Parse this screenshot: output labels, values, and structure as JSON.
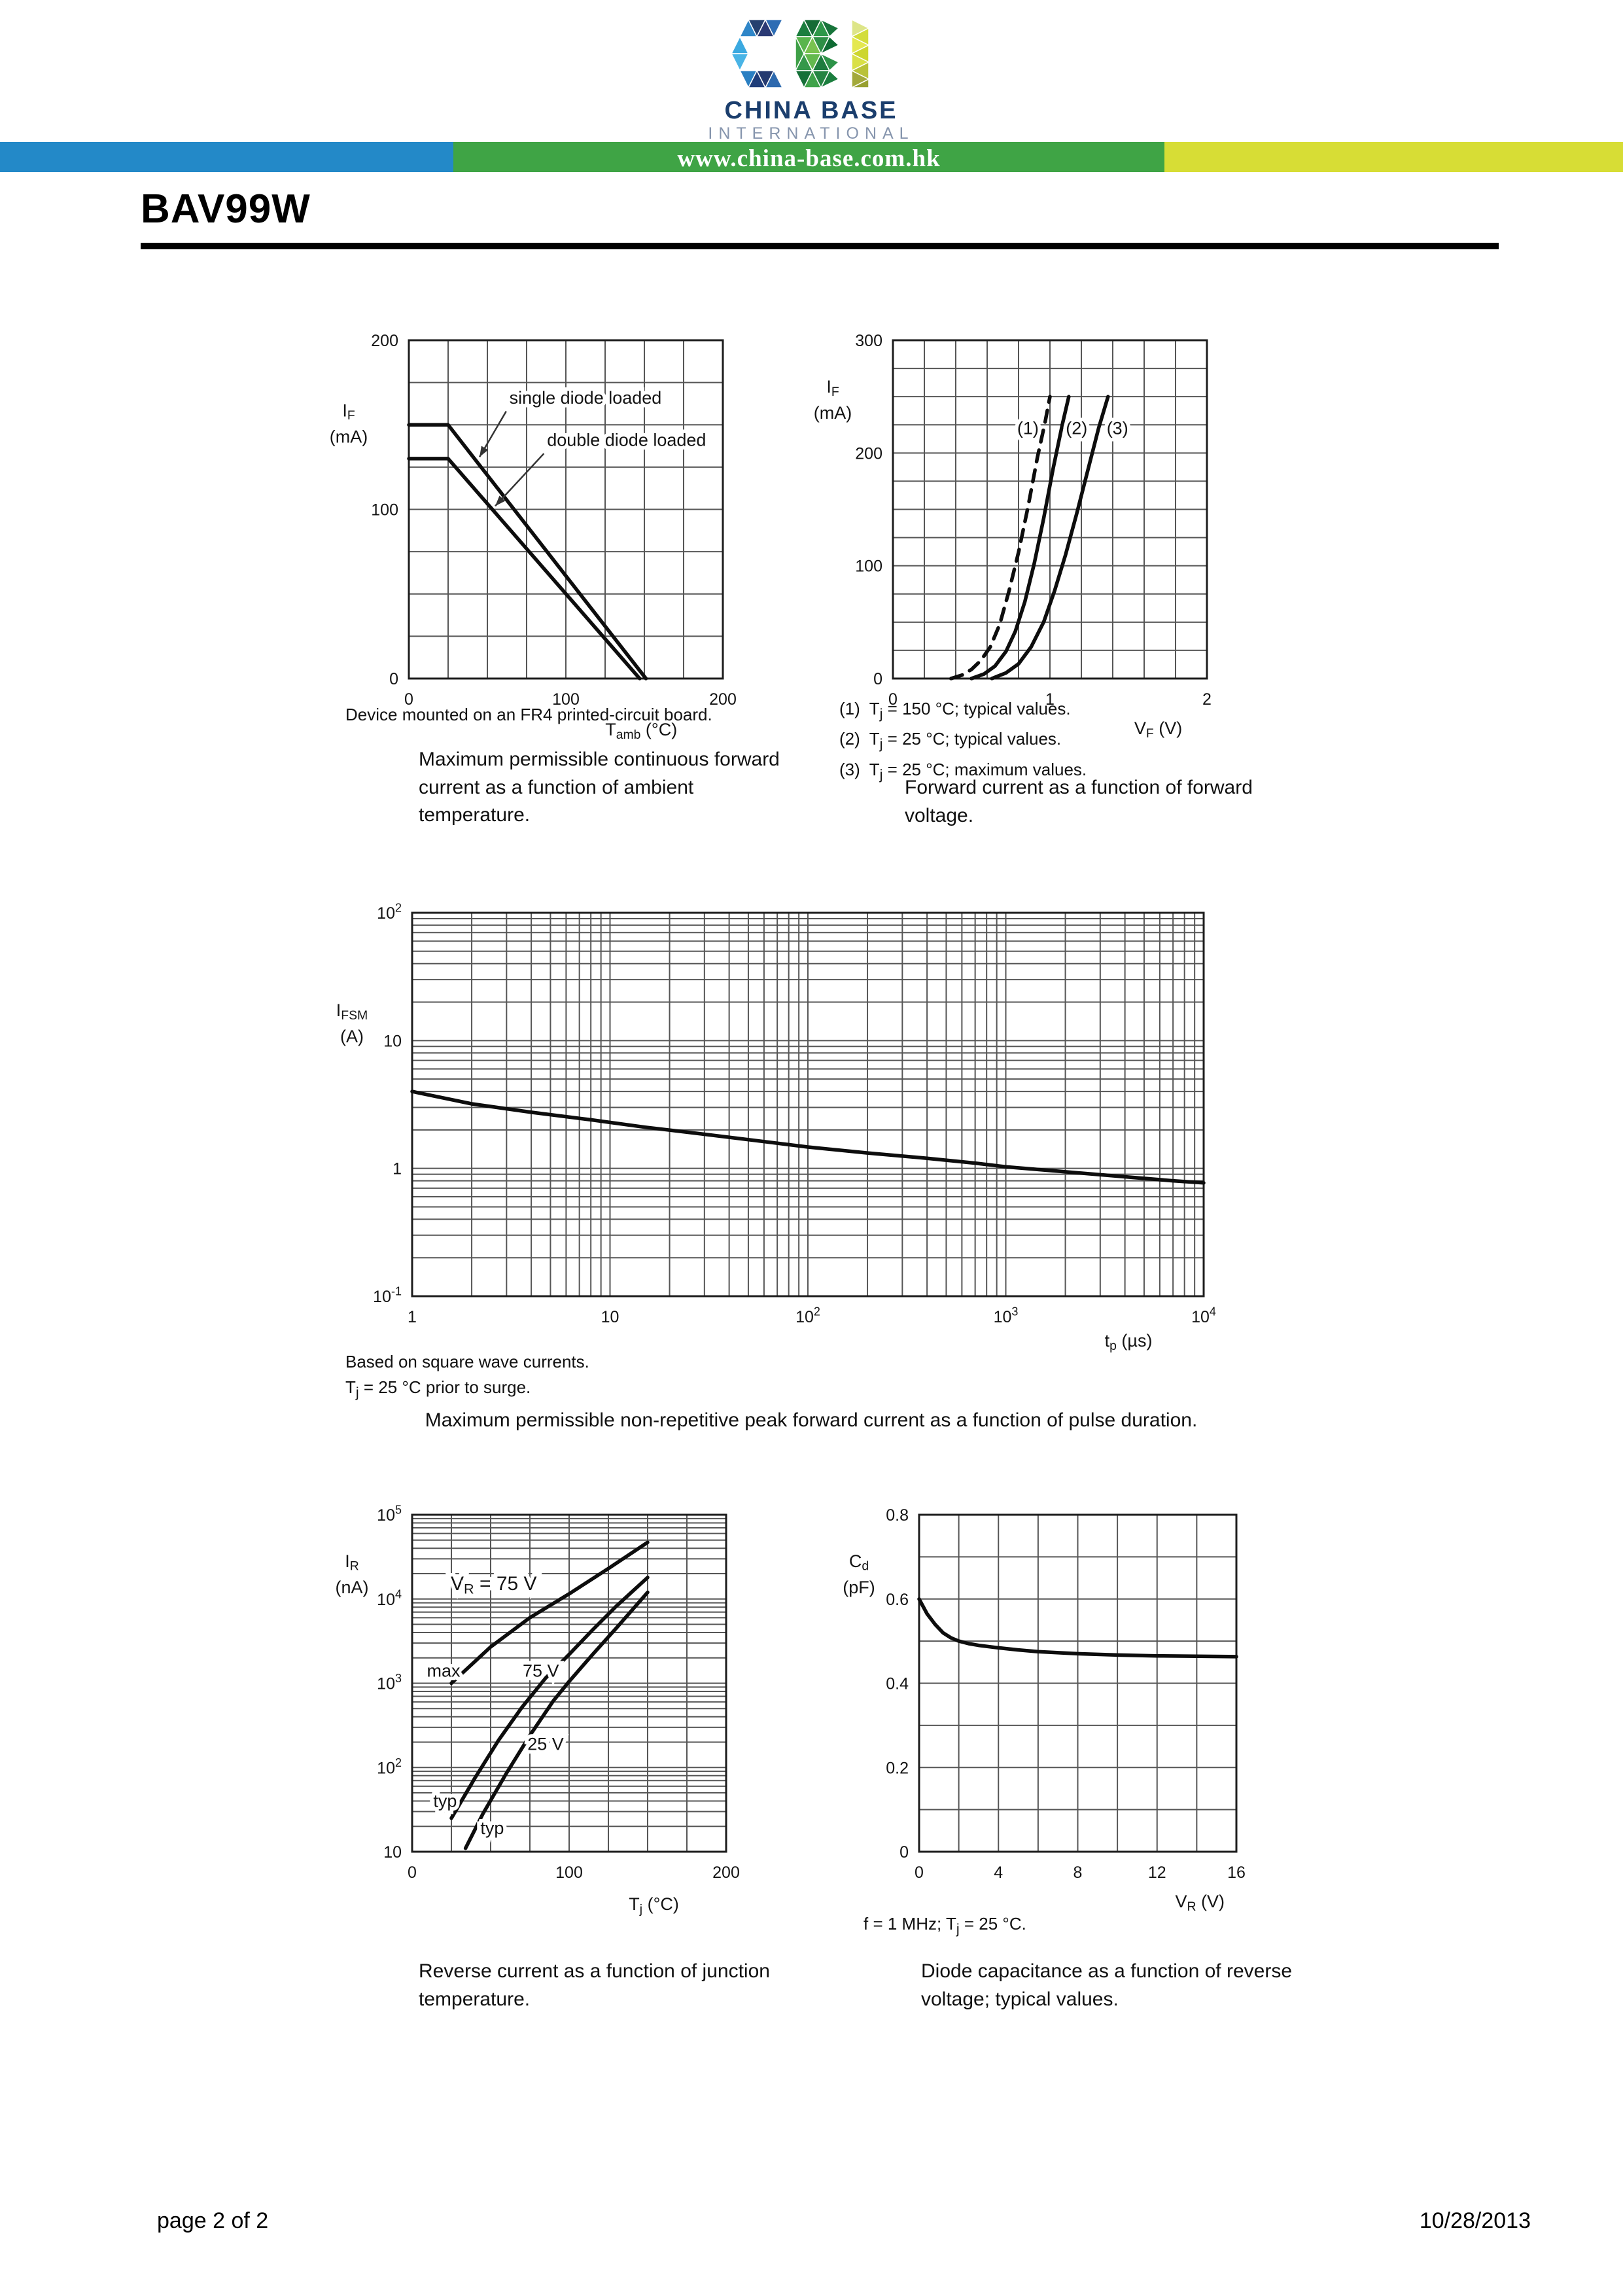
{
  "header": {
    "logo_letters": "CBI",
    "company_name": "CHINA BASE",
    "company_subtitle": "INTERNATIONAL",
    "website": "www.china-base.com.hk",
    "part_number": "BAV99W",
    "brand_colors": {
      "navy": "#1b3e6d",
      "gray_blue": "#8695ad",
      "banner_blue": "#2389c8",
      "banner_green": "#3fa445",
      "banner_yellow": "#d7dd35"
    }
  },
  "footer": {
    "page_label": "page 2 of 2",
    "date": "10/28/2013"
  },
  "captions": {
    "chart1_note": "Device mounted on an FR4 printed-circuit board.",
    "chart1_caption": "Maximum permissible continuous forward current as a function of ambient temperature.",
    "chart2_notes": [
      "(1)  T_{j} = 150 °C; typical values.",
      "(2)  T_{j} = 25 °C; typical values.",
      "(3)  T_{j} = 25 °C; maximum values."
    ],
    "chart2_caption": "Forward current as a function of forward voltage.",
    "chart3_notes": [
      "Based on square wave currents.",
      "T_{j} = 25 °C prior to surge."
    ],
    "chart3_caption": "Maximum permissible non-repetitive peak forward current as a function of pulse duration.",
    "chart4_caption": "Reverse current as a function of junction temperature.",
    "chart5_note": "f = 1 MHz; T_{j} = 25 °C.",
    "chart5_caption": "Diode capacitance as a function of reverse voltage; typical values."
  },
  "chart_data": [
    {
      "id": "c1",
      "type": "line",
      "title": "Maximum permissible continuous forward current as a function of ambient temperature",
      "xlabel": "T_{amb} (°C)",
      "ylabel_lines": [
        "I_{F}",
        "(mA)"
      ],
      "x": {
        "scale": "linear",
        "min": 0,
        "max": 200,
        "grid_step": 25,
        "ticks": [
          {
            "v": 0,
            "l": "0"
          },
          {
            "v": 100,
            "l": "100"
          },
          {
            "v": 200,
            "l": "200"
          }
        ]
      },
      "y": {
        "scale": "linear",
        "min": 0,
        "max": 200,
        "grid_step": 25,
        "ticks": [
          {
            "v": 0,
            "l": "0"
          },
          {
            "v": 100,
            "l": "100"
          },
          {
            "v": 200,
            "l": "200"
          }
        ]
      },
      "series": [
        {
          "name": "single diode loaded",
          "points": [
            [
              0,
              150
            ],
            [
              25,
              150
            ],
            [
              151,
              0
            ]
          ]
        },
        {
          "name": "double diode loaded",
          "points": [
            [
              0,
              130
            ],
            [
              25,
              130
            ],
            [
              147,
              0
            ]
          ]
        }
      ],
      "annotations": [
        {
          "text": "single diode loaded",
          "x": 64,
          "y": 166,
          "anchor": "start"
        },
        {
          "text": "double diode loaded",
          "x": 88,
          "y": 141,
          "anchor": "start"
        }
      ],
      "arrows": [
        {
          "from": [
            62,
            158
          ],
          "to": [
            45,
            131
          ]
        },
        {
          "from": [
            86,
            133
          ],
          "to": [
            55,
            102
          ]
        }
      ]
    },
    {
      "id": "c2",
      "type": "line",
      "title": "Forward current as a function of forward voltage",
      "xlabel": "V_{F} (V)",
      "ylabel_lines": [
        "I_{F}",
        "(mA)"
      ],
      "x": {
        "scale": "linear",
        "min": 0,
        "max": 2,
        "grid_step": 0.2,
        "ticks": [
          {
            "v": 0,
            "l": "0"
          },
          {
            "v": 1,
            "l": "1"
          },
          {
            "v": 2,
            "l": "2"
          }
        ]
      },
      "y": {
        "scale": "linear",
        "min": 0,
        "max": 300,
        "grid_step": 25,
        "ticks": [
          {
            "v": 0,
            "l": "0"
          },
          {
            "v": 100,
            "l": "100"
          },
          {
            "v": 200,
            "l": "200"
          },
          {
            "v": 300,
            "l": "300"
          }
        ]
      },
      "series": [
        {
          "name": "(1) T_{j} = 150 °C; typical values",
          "dashed": true,
          "points": [
            [
              0.37,
              0
            ],
            [
              0.44,
              3
            ],
            [
              0.5,
              8
            ],
            [
              0.56,
              16
            ],
            [
              0.62,
              28
            ],
            [
              0.68,
              48
            ],
            [
              0.74,
              78
            ],
            [
              0.8,
              112
            ],
            [
              0.86,
              152
            ],
            [
              0.92,
              196
            ],
            [
              0.97,
              228
            ],
            [
              1.0,
              250
            ]
          ]
        },
        {
          "name": "(2) T_{j} = 25 °C; typical values",
          "points": [
            [
              0.5,
              0
            ],
            [
              0.58,
              4
            ],
            [
              0.65,
              11
            ],
            [
              0.72,
              24
            ],
            [
              0.78,
              42
            ],
            [
              0.84,
              68
            ],
            [
              0.9,
              102
            ],
            [
              0.96,
              142
            ],
            [
              1.02,
              186
            ],
            [
              1.08,
              226
            ],
            [
              1.12,
              250
            ]
          ]
        },
        {
          "name": "(3) T_{j} = 25 °C; maximum values",
          "points": [
            [
              0.63,
              0
            ],
            [
              0.72,
              5
            ],
            [
              0.8,
              13
            ],
            [
              0.88,
              28
            ],
            [
              0.96,
              50
            ],
            [
              1.03,
              78
            ],
            [
              1.1,
              110
            ],
            [
              1.17,
              146
            ],
            [
              1.24,
              184
            ],
            [
              1.31,
              222
            ],
            [
              1.37,
              250
            ]
          ]
        }
      ],
      "annotations": [
        {
          "text": "(1)",
          "x": 0.86,
          "y": 222,
          "anchor": "middle"
        },
        {
          "text": "(2)",
          "x": 1.17,
          "y": 222,
          "anchor": "middle"
        },
        {
          "text": "(3)",
          "x": 1.43,
          "y": 222,
          "anchor": "middle"
        }
      ],
      "arrows": []
    },
    {
      "id": "c3",
      "type": "line",
      "title": "Maximum permissible non-repetitive peak forward current as a function of pulse duration",
      "xlabel": "t_{p} (µs)",
      "ylabel_lines": [
        "I_{FSM}",
        "(A)"
      ],
      "x": {
        "scale": "log",
        "min": 1,
        "max": 10000,
        "ticks": [
          {
            "v": 1,
            "l": "1"
          },
          {
            "v": 10,
            "l": "10"
          },
          {
            "v": 100,
            "l": "10^{2}"
          },
          {
            "v": 1000,
            "l": "10^{3}"
          },
          {
            "v": 10000,
            "l": "10^{4}"
          }
        ]
      },
      "y": {
        "scale": "log",
        "min": 0.1,
        "max": 100,
        "ticks": [
          {
            "v": 0.1,
            "l": "10^{-1}"
          },
          {
            "v": 1,
            "l": "1"
          },
          {
            "v": 10,
            "l": "10"
          },
          {
            "v": 100,
            "l": "10^{2}"
          }
        ]
      },
      "series": [
        {
          "name": "IFSM",
          "points": [
            [
              1,
              4.0
            ],
            [
              2,
              3.2
            ],
            [
              4,
              2.75
            ],
            [
              8,
              2.4
            ],
            [
              15,
              2.1
            ],
            [
              30,
              1.85
            ],
            [
              60,
              1.62
            ],
            [
              100,
              1.47
            ],
            [
              200,
              1.32
            ],
            [
              400,
              1.2
            ],
            [
              700,
              1.1
            ],
            [
              1000,
              1.03
            ],
            [
              2000,
              0.94
            ],
            [
              4000,
              0.86
            ],
            [
              7000,
              0.8
            ],
            [
              10000,
              0.77
            ]
          ]
        }
      ],
      "annotations": [],
      "arrows": []
    },
    {
      "id": "c4",
      "type": "line",
      "title": "Reverse current as a function of junction temperature",
      "xlabel": "T_{j} (°C)",
      "ylabel_lines": [
        "I_{R}",
        "(nA)"
      ],
      "x": {
        "scale": "linear",
        "min": 0,
        "max": 200,
        "grid_step": 25,
        "ticks": [
          {
            "v": 0,
            "l": "0"
          },
          {
            "v": 100,
            "l": "100"
          },
          {
            "v": 200,
            "l": "200"
          }
        ]
      },
      "y": {
        "scale": "log",
        "min": 10,
        "max": 100000,
        "ticks": [
          {
            "v": 10,
            "l": "10"
          },
          {
            "v": 100,
            "l": "10^{2}"
          },
          {
            "v": 1000,
            "l": "10^{3}"
          },
          {
            "v": 10000,
            "l": "10^{4}"
          },
          {
            "v": 100000,
            "l": "10^{5}"
          }
        ]
      },
      "series": [
        {
          "name": "VR = 75 V max",
          "points": [
            [
              25,
              1000
            ],
            [
              50,
              2700
            ],
            [
              75,
              6000
            ],
            [
              100,
              11500
            ],
            [
              125,
              23000
            ],
            [
              150,
              47000
            ]
          ]
        },
        {
          "name": "VR = 75 V typ",
          "points": [
            [
              25,
              25
            ],
            [
              40,
              75
            ],
            [
              55,
              210
            ],
            [
              70,
              520
            ],
            [
              85,
              1150
            ],
            [
              100,
              2200
            ],
            [
              115,
              4300
            ],
            [
              130,
              8200
            ],
            [
              150,
              18000
            ]
          ]
        },
        {
          "name": "VR = 25 V typ",
          "points": [
            [
              34,
              11
            ],
            [
              45,
              28
            ],
            [
              60,
              85
            ],
            [
              75,
              240
            ],
            [
              90,
              620
            ],
            [
              100,
              1050
            ],
            [
              115,
              2200
            ],
            [
              130,
              4500
            ],
            [
              150,
              12000
            ]
          ]
        }
      ],
      "annotations": [
        {
          "text": "V_{R} = 75 V",
          "x": 52,
          "y": 15000,
          "anchor": "middle",
          "size": 30
        },
        {
          "text": "max",
          "x": 20,
          "y": 1400,
          "anchor": "middle"
        },
        {
          "text": "75 V",
          "x": 82,
          "y": 1400,
          "anchor": "middle"
        },
        {
          "text": "25 V",
          "x": 85,
          "y": 190,
          "anchor": "middle"
        },
        {
          "text": "typ",
          "x": 21,
          "y": 40,
          "anchor": "middle"
        },
        {
          "text": "typ",
          "x": 51,
          "y": 19,
          "anchor": "middle"
        }
      ],
      "arrows": []
    },
    {
      "id": "c5",
      "type": "line",
      "title": "Diode capacitance as a function of reverse voltage; typical values",
      "xlabel": "V_{R} (V)",
      "ylabel_lines": [
        "C_{d}",
        "(pF)"
      ],
      "x": {
        "scale": "linear",
        "min": 0,
        "max": 16,
        "grid_step": 2,
        "ticks": [
          {
            "v": 0,
            "l": "0"
          },
          {
            "v": 4,
            "l": "4"
          },
          {
            "v": 8,
            "l": "8"
          },
          {
            "v": 12,
            "l": "12"
          },
          {
            "v": 16,
            "l": "16"
          }
        ]
      },
      "y": {
        "scale": "linear",
        "min": 0,
        "max": 0.8,
        "grid_step": 0.1,
        "ticks": [
          {
            "v": 0,
            "l": "0"
          },
          {
            "v": 0.2,
            "l": "0.2"
          },
          {
            "v": 0.4,
            "l": "0.4"
          },
          {
            "v": 0.6,
            "l": "0.6"
          },
          {
            "v": 0.8,
            "l": "0.8"
          }
        ]
      },
      "series": [
        {
          "name": "Cd typical",
          "points": [
            [
              0,
              0.6
            ],
            [
              0.4,
              0.565
            ],
            [
              0.8,
              0.54
            ],
            [
              1.2,
              0.52
            ],
            [
              1.6,
              0.508
            ],
            [
              2,
              0.5
            ],
            [
              2.5,
              0.494
            ],
            [
              3,
              0.49
            ],
            [
              4,
              0.484
            ],
            [
              5,
              0.479
            ],
            [
              6,
              0.475
            ],
            [
              8,
              0.47
            ],
            [
              10,
              0.467
            ],
            [
              12,
              0.465
            ],
            [
              14,
              0.464
            ],
            [
              16,
              0.463
            ]
          ]
        }
      ],
      "annotations": [],
      "arrows": []
    }
  ]
}
